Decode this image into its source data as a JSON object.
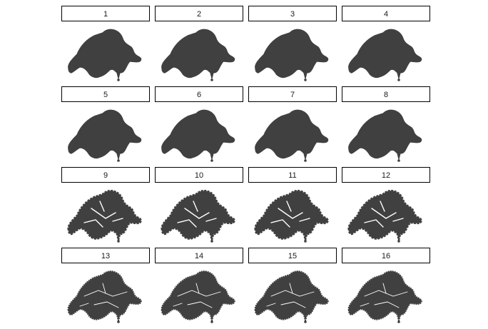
{
  "chart_data": {
    "type": "map",
    "layout": "facet-grid",
    "rows": 4,
    "cols": 4,
    "panels": [
      {
        "label": "1",
        "variant": "smooth"
      },
      {
        "label": "2",
        "variant": "smooth"
      },
      {
        "label": "3",
        "variant": "smooth"
      },
      {
        "label": "4",
        "variant": "smooth"
      },
      {
        "label": "5",
        "variant": "smooth"
      },
      {
        "label": "6",
        "variant": "smooth"
      },
      {
        "label": "7",
        "variant": "smooth"
      },
      {
        "label": "8",
        "variant": "smooth"
      },
      {
        "label": "9",
        "variant": "fragmented"
      },
      {
        "label": "10",
        "variant": "fragmented"
      },
      {
        "label": "11",
        "variant": "fragmented"
      },
      {
        "label": "12",
        "variant": "fragmented"
      },
      {
        "label": "13",
        "variant": "detailed"
      },
      {
        "label": "14",
        "variant": "detailed"
      },
      {
        "label": "15",
        "variant": "detailed"
      },
      {
        "label": "16",
        "variant": "detailed"
      }
    ],
    "fill_color": "#404040",
    "strip_border_color": "#000000",
    "background_color": "#ffffff"
  }
}
